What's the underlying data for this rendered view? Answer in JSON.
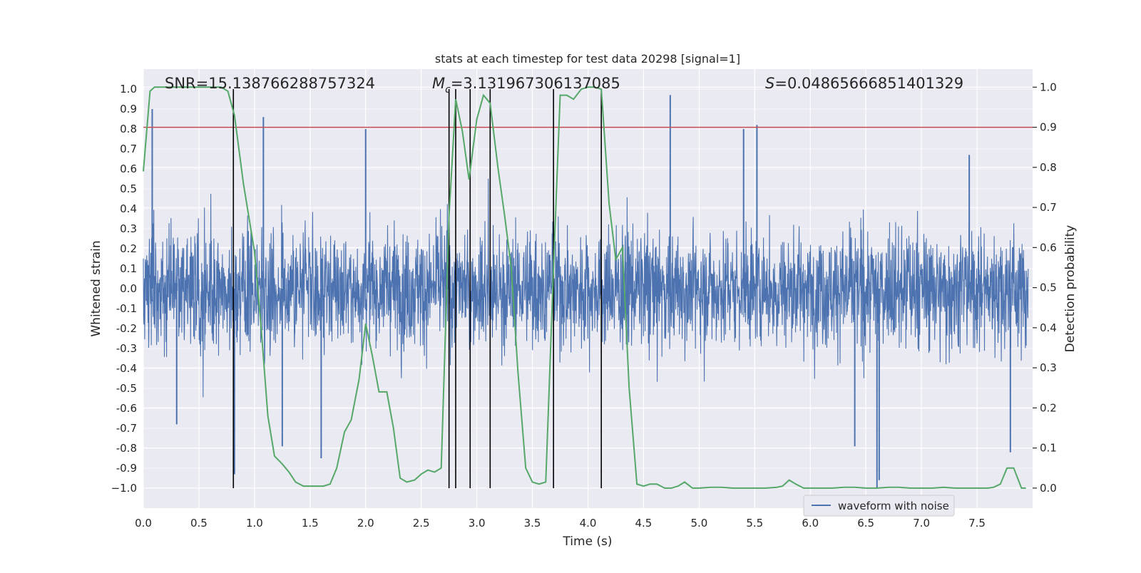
{
  "chart_data": {
    "type": "line",
    "title": "stats at each timestep for test data 20298 [signal=1]",
    "xlabel": "Time (s)",
    "ylabel": "Whitened strain",
    "y2label": "Detection probability",
    "xlim": [
      0.0,
      8.0
    ],
    "ylim": [
      -1.1,
      1.1
    ],
    "y2lim": [
      -0.05,
      1.045
    ],
    "x_ticks": [
      "0.0",
      "0.5",
      "1.0",
      "1.5",
      "2.0",
      "2.5",
      "3.0",
      "3.5",
      "4.0",
      "4.5",
      "5.0",
      "5.5",
      "6.0",
      "6.5",
      "7.0",
      "7.5"
    ],
    "y_ticks": [
      "1.0",
      "0.9",
      "0.8",
      "0.7",
      "0.6",
      "0.5",
      "0.4",
      "0.3",
      "0.2",
      "0.1",
      "0.0",
      "-0.1",
      "-0.2",
      "-0.3",
      "-0.4",
      "-0.5",
      "-0.6",
      "-0.7",
      "-0.8",
      "-0.9",
      "−1.0"
    ],
    "y2_ticks": [
      "1.0",
      "0.9",
      "0.8",
      "0.7",
      "0.6",
      "0.5",
      "0.4",
      "0.3",
      "0.2",
      "0.1",
      "0.0"
    ],
    "annotations": {
      "snr": "SNR=15.138766288757324",
      "mc_symbol": "M",
      "mc_sub": "c",
      "mc_value": "=3.131967306137085",
      "s_symbol": "S",
      "s_value": "=0.04865666851401329"
    },
    "legend": {
      "label": "waveform with noise",
      "position": "lower-right"
    },
    "series": [
      {
        "name": "waveform with noise",
        "axis": "left",
        "color": "#4c72b0",
        "style": "dense noise",
        "typical_amplitude": 0.4,
        "spikes": [
          [
            0.08,
            0.9
          ],
          [
            1.08,
            0.86
          ],
          [
            2.0,
            0.8
          ],
          [
            4.74,
            0.97
          ],
          [
            5.4,
            0.8
          ],
          [
            5.52,
            0.82
          ],
          [
            7.43,
            0.67
          ],
          [
            0.82,
            -0.93
          ],
          [
            1.25,
            -0.79
          ],
          [
            1.6,
            -0.85
          ],
          [
            6.4,
            -0.79
          ],
          [
            6.6,
            -1.0
          ],
          [
            6.62,
            -0.96
          ],
          [
            7.8,
            -0.82
          ],
          [
            0.3,
            -0.68
          ]
        ]
      },
      {
        "name": "detection probability",
        "axis": "right",
        "color": "#55a868",
        "x": [
          0.0,
          0.06,
          0.1,
          0.2,
          0.3,
          0.4,
          0.5,
          0.6,
          0.7,
          0.76,
          0.82,
          0.9,
          1.0,
          1.06,
          1.12,
          1.18,
          1.25,
          1.31,
          1.37,
          1.44,
          1.5,
          1.56,
          1.62,
          1.68,
          1.74,
          1.81,
          1.87,
          1.94,
          2.0,
          2.06,
          2.12,
          2.19,
          2.25,
          2.31,
          2.37,
          2.44,
          2.5,
          2.56,
          2.62,
          2.68,
          2.75,
          2.81,
          2.87,
          2.93,
          3.0,
          3.06,
          3.12,
          3.19,
          3.25,
          3.31,
          3.37,
          3.44,
          3.5,
          3.56,
          3.62,
          3.69,
          3.75,
          3.81,
          3.87,
          3.94,
          4.0,
          4.06,
          4.12,
          4.19,
          4.25,
          4.31,
          4.37,
          4.44,
          4.5,
          4.56,
          4.62,
          4.69,
          4.75,
          4.81,
          4.87,
          4.94,
          5.0,
          5.1,
          5.2,
          5.3,
          5.4,
          5.5,
          5.6,
          5.7,
          5.75,
          5.81,
          5.87,
          5.94,
          6.0,
          6.1,
          6.2,
          6.3,
          6.4,
          6.5,
          6.6,
          6.7,
          6.8,
          6.9,
          7.0,
          7.1,
          7.2,
          7.3,
          7.4,
          7.5,
          7.6,
          7.65,
          7.71,
          7.77,
          7.83,
          7.9,
          7.94
        ],
        "values": [
          0.79,
          0.99,
          1.0,
          1.0,
          1.0,
          1.0,
          1.0,
          1.0,
          1.0,
          0.99,
          0.93,
          0.76,
          0.59,
          0.4,
          0.18,
          0.08,
          0.06,
          0.04,
          0.015,
          0.005,
          0.005,
          0.005,
          0.005,
          0.01,
          0.05,
          0.14,
          0.17,
          0.27,
          0.41,
          0.33,
          0.24,
          0.24,
          0.15,
          0.025,
          0.015,
          0.02,
          0.035,
          0.045,
          0.04,
          0.05,
          0.68,
          0.97,
          0.89,
          0.77,
          0.92,
          0.98,
          0.96,
          0.8,
          0.68,
          0.55,
          0.29,
          0.05,
          0.015,
          0.01,
          0.015,
          0.55,
          0.98,
          0.98,
          0.97,
          0.995,
          1.0,
          1.0,
          0.995,
          0.71,
          0.57,
          0.6,
          0.25,
          0.01,
          0.005,
          0.01,
          0.01,
          0.0,
          0.0,
          0.005,
          0.015,
          0.0,
          0.0,
          0.002,
          0.002,
          0.0,
          0.0,
          0.0,
          0.0,
          0.002,
          0.005,
          0.02,
          0.01,
          0.0,
          0.0,
          0.0,
          0.0,
          0.002,
          0.002,
          0.0,
          0.0,
          0.002,
          0.002,
          0.0,
          0.0,
          0.0,
          0.002,
          0.0,
          0.0,
          0.0,
          0.0,
          0.002,
          0.01,
          0.05,
          0.05,
          0.0,
          0.0
        ]
      }
    ],
    "threshold": {
      "value": 0.9,
      "axis": "right",
      "color": "#c44e52"
    },
    "vertical_markers": {
      "x": [
        0.81,
        2.75,
        2.81,
        2.94,
        3.12,
        3.69,
        4.12
      ],
      "color": "#000000",
      "y_from": -1.0,
      "y_to": 1.0
    },
    "grid": true
  }
}
